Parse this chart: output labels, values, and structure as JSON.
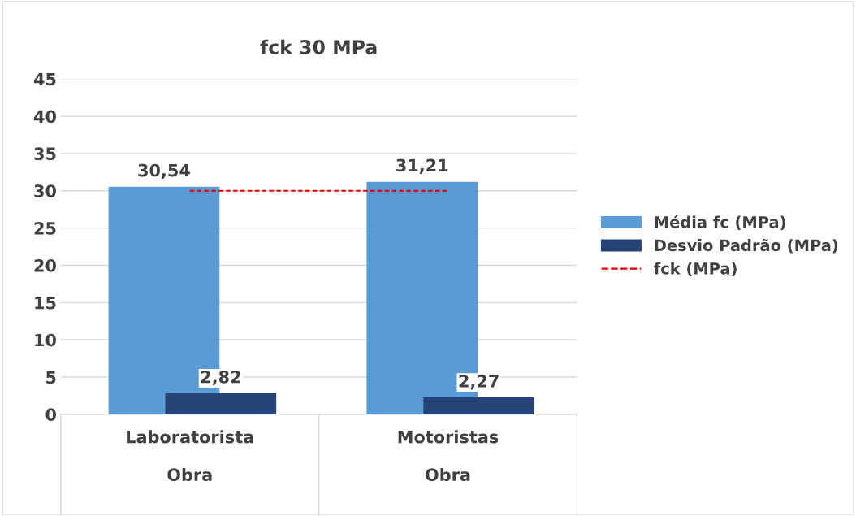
{
  "chart_data": {
    "type": "bar",
    "title": "fck 30 MPa",
    "categories": [
      "Laboratorista\n\nObra",
      "Motoristas\n\nObra"
    ],
    "series": [
      {
        "name": "Média fc (MPa)",
        "color": "#5b9bd5",
        "values": [
          30.54,
          31.21
        ],
        "value_labels": [
          "30,54",
          "31,21"
        ]
      },
      {
        "name": "Desvio Padrão (MPa)",
        "color": "#264478",
        "values": [
          2.82,
          2.27
        ],
        "value_labels": [
          "2,82",
          "2,27"
        ]
      },
      {
        "name": "fck (MPa)",
        "type": "line",
        "color": "#e00000",
        "values": [
          30,
          30
        ],
        "line_style": "dashed",
        "marker": "none"
      }
    ],
    "ylim": [
      0,
      45
    ],
    "yticks": [
      0,
      5,
      10,
      15,
      20,
      25,
      30,
      35,
      40,
      45
    ],
    "grid": "y",
    "legend": "right"
  }
}
